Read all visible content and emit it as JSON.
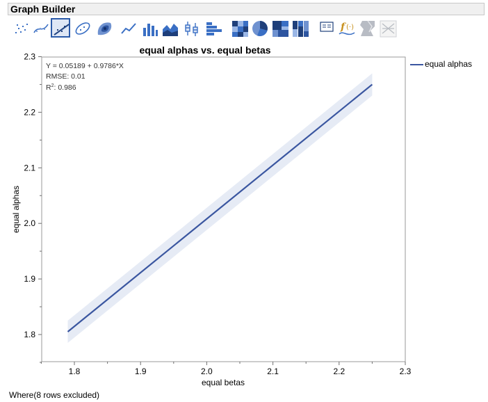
{
  "window": {
    "title": "Graph Builder"
  },
  "toolbar": {
    "buttons": [
      {
        "name": "points-icon",
        "selected": false
      },
      {
        "name": "smoother-icon",
        "selected": false
      },
      {
        "name": "line-of-fit-icon",
        "selected": true
      },
      {
        "name": "ellipse-icon",
        "selected": false
      },
      {
        "name": "contour-icon",
        "selected": false
      },
      {
        "name": "line-icon",
        "selected": false
      },
      {
        "name": "bar-icon",
        "selected": false
      },
      {
        "name": "area-icon",
        "selected": false
      },
      {
        "name": "box-plot-icon",
        "selected": false
      },
      {
        "name": "histogram-icon",
        "selected": false
      },
      {
        "name": "heatmap-icon",
        "selected": false
      },
      {
        "name": "pie-icon",
        "selected": false
      },
      {
        "name": "treemap-icon",
        "selected": false
      },
      {
        "name": "mosaic-icon",
        "selected": false
      },
      {
        "name": "caption-box-icon",
        "selected": false
      },
      {
        "name": "formula-icon",
        "selected": false
      },
      {
        "name": "map-shapes-icon",
        "selected": false
      },
      {
        "name": "parallel-plot-icon",
        "selected": false
      }
    ]
  },
  "chart_data": {
    "type": "line",
    "title": "equal alphas vs. equal betas",
    "xlabel": "equal betas",
    "ylabel": "equal alphas",
    "xlim": [
      1.75,
      2.3
    ],
    "ylim": [
      1.75,
      2.3
    ],
    "xticks": [
      "1.8",
      "1.9",
      "2.0",
      "2.1",
      "2.2",
      "2.3"
    ],
    "yticks": [
      "1.8",
      "1.9",
      "2.0",
      "2.1",
      "2.2",
      "2.3"
    ],
    "series": [
      {
        "name": "equal alphas",
        "x": [
          1.79,
          2.25
        ],
        "y": [
          1.805,
          2.25
        ],
        "color": "#3a56a0"
      }
    ],
    "band": {
      "x": [
        1.79,
        2.25
      ],
      "upper": [
        1.825,
        2.27
      ],
      "lower": [
        1.785,
        2.23
      ],
      "color": "#e6ebf5"
    },
    "fit": {
      "equation": "Y = 0.05189 + 0.9786*X",
      "rmse": "RMSE: 0.01",
      "r2_label": "R",
      "r2_sup": "2",
      "r2_value": ": 0.986"
    },
    "legend": "right",
    "grid": false
  },
  "footer": {
    "text": "Where(8 rows excluded)"
  }
}
